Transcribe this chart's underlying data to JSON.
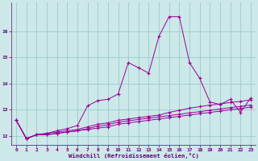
{
  "x": [
    0,
    1,
    2,
    3,
    4,
    5,
    6,
    7,
    8,
    9,
    10,
    11,
    12,
    13,
    14,
    15,
    16,
    17,
    18,
    19,
    20,
    21,
    22,
    23
  ],
  "line1": [
    12.6,
    11.9,
    12.05,
    12.05,
    12.1,
    12.15,
    12.2,
    12.25,
    12.3,
    12.35,
    12.45,
    12.5,
    12.55,
    12.6,
    12.65,
    12.7,
    12.75,
    12.8,
    12.85,
    12.9,
    12.95,
    13.0,
    13.05,
    13.1
  ],
  "line2": [
    12.6,
    11.9,
    12.05,
    12.05,
    12.1,
    12.15,
    12.2,
    12.28,
    12.38,
    12.43,
    12.53,
    12.58,
    12.63,
    12.68,
    12.73,
    12.78,
    12.83,
    12.88,
    12.93,
    12.98,
    13.03,
    13.08,
    13.13,
    13.18
  ],
  "line3": [
    12.6,
    11.9,
    12.05,
    12.1,
    12.15,
    12.2,
    12.25,
    12.35,
    12.45,
    12.5,
    12.6,
    12.65,
    12.7,
    12.75,
    12.8,
    12.9,
    12.98,
    13.06,
    13.12,
    13.18,
    13.22,
    13.28,
    13.32,
    13.38
  ],
  "line4": [
    12.6,
    11.9,
    12.05,
    12.1,
    12.2,
    12.28,
    12.4,
    13.15,
    13.35,
    13.4,
    13.6,
    14.8,
    14.6,
    14.4,
    15.8,
    16.55,
    16.55,
    14.8,
    14.2,
    13.3,
    13.2,
    13.4,
    12.9,
    13.45
  ],
  "color": "#990099",
  "bg_color": "#cce8e8",
  "grid_color": "#99cccc",
  "xlabel": "Windchill (Refroidissement éolien,°C)",
  "ylim": [
    11.65,
    17.1
  ],
  "xlim": [
    -0.5,
    23.5
  ],
  "yticks": [
    12,
    13,
    14,
    15,
    16
  ],
  "xticks": [
    0,
    1,
    2,
    3,
    4,
    5,
    6,
    7,
    8,
    9,
    10,
    11,
    12,
    13,
    14,
    15,
    16,
    17,
    18,
    19,
    20,
    21,
    22,
    23
  ]
}
